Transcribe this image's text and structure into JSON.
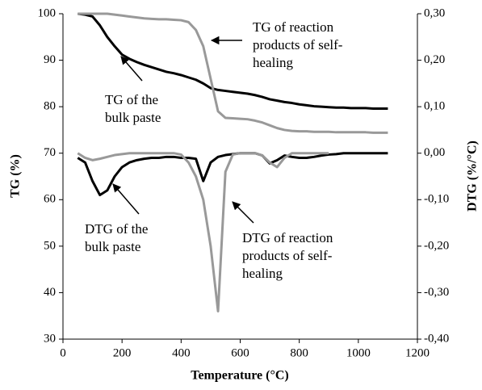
{
  "chart_data": {
    "type": "line",
    "xlabel": "Temperature (°C)",
    "ylabel": "TG (%)",
    "y2label": "DTG (%/°C)",
    "x": [
      50,
      75,
      100,
      125,
      150,
      175,
      200,
      225,
      250,
      275,
      300,
      325,
      350,
      375,
      400,
      425,
      450,
      475,
      500,
      525,
      550,
      575,
      600,
      625,
      650,
      675,
      700,
      725,
      750,
      775,
      800,
      825,
      850,
      875,
      900,
      925,
      950,
      975,
      1000,
      1025,
      1050,
      1075,
      1100
    ],
    "series": [
      {
        "color": "#000000",
        "axis": "y",
        "values": [
          100,
          99.8,
          99.4,
          97.5,
          95,
          93,
          91.2,
          90.3,
          89.6,
          89,
          88.5,
          88,
          87.5,
          87.2,
          86.8,
          86.3,
          85.8,
          85,
          84,
          83.6,
          83.4,
          83.2,
          83,
          82.8,
          82.5,
          82.1,
          81.6,
          81.3,
          81,
          80.8,
          80.5,
          80.3,
          80.1,
          80,
          79.9,
          79.8,
          79.8,
          79.7,
          79.7,
          79.7,
          79.6,
          79.6,
          79.6
        ]
      },
      {
        "color": "#999999",
        "axis": "y",
        "values": [
          100,
          100,
          100,
          100,
          100,
          99.8,
          99.6,
          99.4,
          99.2,
          99,
          98.9,
          98.8,
          98.8,
          98.7,
          98.6,
          98.2,
          96.5,
          93,
          86,
          79,
          77.6,
          77.5,
          77.4,
          77.3,
          77,
          76.6,
          76,
          75.4,
          75,
          74.8,
          74.7,
          74.7,
          74.6,
          74.6,
          74.6,
          74.5,
          74.5,
          74.5,
          74.5,
          74.5,
          74.4,
          74.4,
          74.4
        ]
      },
      {
        "color": "#000000",
        "axis": "y2",
        "values": [
          -0.01,
          -0.02,
          -0.06,
          -0.09,
          -0.08,
          -0.05,
          -0.03,
          -0.02,
          -0.015,
          -0.012,
          -0.01,
          -0.01,
          -0.008,
          -0.008,
          -0.01,
          -0.01,
          -0.012,
          -0.06,
          -0.02,
          -0.008,
          -0.004,
          -0.002,
          0,
          0,
          0,
          -0.005,
          -0.022,
          -0.015,
          -0.005,
          -0.008,
          -0.01,
          -0.01,
          -0.008,
          -0.005,
          -0.003,
          -0.002,
          0,
          0,
          0,
          0,
          0,
          0,
          0
        ]
      },
      {
        "color": "#999999",
        "axis": "y2",
        "values": [
          0,
          -0.01,
          -0.015,
          -0.012,
          -0.008,
          -0.004,
          -0.002,
          0,
          0,
          0,
          0,
          0,
          0,
          0,
          -0.003,
          -0.02,
          -0.05,
          -0.1,
          -0.2,
          -0.34,
          -0.04,
          -0.003,
          0,
          0,
          0,
          -0.005,
          -0.02,
          -0.03,
          -0.01,
          0,
          0,
          0,
          0,
          0,
          0,
          null,
          null,
          null,
          null,
          null,
          null,
          null,
          null
        ]
      }
    ],
    "xlim": [
      0,
      1200
    ],
    "xticks": [
      0,
      200,
      400,
      600,
      800,
      1000,
      1200
    ],
    "ylim": [
      30,
      100
    ],
    "yticks": [
      30,
      40,
      50,
      60,
      70,
      80,
      90,
      100
    ],
    "y2lim": [
      -0.4,
      0.3
    ],
    "y2ticks": [
      {
        "value": -0.4,
        "label": "-0,40"
      },
      {
        "value": -0.3,
        "label": "-0,30"
      },
      {
        "value": -0.2,
        "label": "-0,20"
      },
      {
        "value": -0.1,
        "label": "-0,10"
      },
      {
        "value": 0,
        "label": "0,00"
      },
      {
        "value": 0.1,
        "label": "0,10"
      },
      {
        "value": 0.2,
        "label": "0,20"
      },
      {
        "value": 0.3,
        "label": "0,30"
      }
    ],
    "grid": false,
    "annotations": [
      [
        "TG of reaction",
        "products of self-",
        "healing"
      ],
      [
        "TG of the",
        "bulk paste"
      ],
      [
        "DTG of the",
        "bulk paste"
      ],
      [
        "DTG of reaction",
        "products of self-",
        "healing"
      ]
    ]
  }
}
